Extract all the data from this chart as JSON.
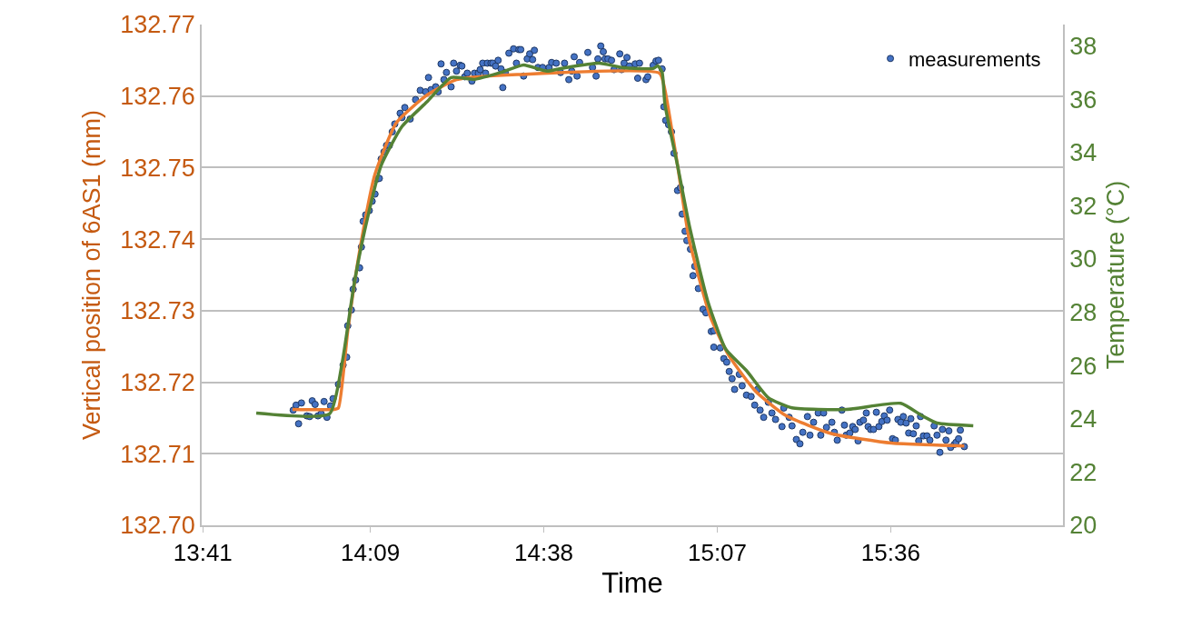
{
  "chart_data": {
    "type": "scatter",
    "xlabel": "Time",
    "ylabel": "Vertical position of 6AS1 (mm)",
    "y2label": "Temperature (°C)",
    "xlim": [
      13.68,
      16.08
    ],
    "xticks": [
      {
        "value": 13.6833,
        "label": "13:41"
      },
      {
        "value": 14.15,
        "label": "14:09"
      },
      {
        "value": 14.6333,
        "label": "14:38"
      },
      {
        "value": 15.1167,
        "label": "15:07"
      },
      {
        "value": 15.6,
        "label": "15:36"
      }
    ],
    "ylim": [
      132.7,
      132.77
    ],
    "yticks": [
      {
        "value": 132.7,
        "label": "132.70"
      },
      {
        "value": 132.71,
        "label": "132.71"
      },
      {
        "value": 132.72,
        "label": "132.72"
      },
      {
        "value": 132.73,
        "label": "132.73"
      },
      {
        "value": 132.74,
        "label": "132.74"
      },
      {
        "value": 132.75,
        "label": "132.75"
      },
      {
        "value": 132.76,
        "label": "132.76"
      },
      {
        "value": 132.77,
        "label": "132.77"
      }
    ],
    "y2lim": [
      20,
      38.8
    ],
    "y2ticks": [
      20,
      22,
      24,
      26,
      28,
      30,
      32,
      34,
      36,
      38
    ],
    "grid": "y",
    "legend": "top right",
    "series": [
      {
        "name": "measurements",
        "marker": "circle",
        "color": "#4472c4",
        "x": [
          13.935,
          13.943,
          13.95,
          13.958,
          13.973,
          13.981,
          13.988,
          13.996,
          14.004,
          14.013,
          14.021,
          14.029,
          14.039,
          14.046,
          14.061,
          14.074,
          14.084,
          14.087,
          14.097,
          14.102,
          14.109,
          14.12,
          14.125,
          14.13,
          14.137,
          14.147,
          14.155,
          14.163,
          14.168,
          14.175,
          14.18,
          14.188,
          14.195,
          14.203,
          14.211,
          14.218,
          14.233,
          14.238,
          14.246,
          14.261,
          14.276,
          14.289,
          14.304,
          14.312,
          14.319,
          14.332,
          14.339,
          14.347,
          14.355,
          14.362,
          14.375,
          14.382,
          14.39,
          14.4,
          14.405,
          14.413,
          14.42,
          14.433,
          14.44,
          14.451,
          14.456,
          14.463,
          14.471,
          14.476,
          14.486,
          14.491,
          14.499,
          14.506,
          14.514,
          14.519,
          14.526,
          14.536,
          14.549,
          14.557,
          14.564,
          14.569,
          14.577,
          14.587,
          14.594,
          14.602,
          14.607,
          14.617,
          14.63,
          14.648,
          14.655,
          14.668,
          14.68,
          14.691,
          14.703,
          14.711,
          14.718,
          14.726,
          14.733,
          14.756,
          14.769,
          14.779,
          14.784,
          14.792,
          14.799,
          14.804,
          14.812,
          14.822,
          14.829,
          14.845,
          14.85,
          14.857,
          14.865,
          14.872,
          14.888,
          14.895,
          14.9,
          14.918,
          14.923,
          14.938,
          14.946,
          14.953,
          14.963,
          14.968,
          14.973,
          14.981,
          14.989,
          14.996,
          15.006,
          15.014,
          15.019,
          15.027,
          15.032,
          15.042,
          15.054,
          15.049,
          15.064,
          15.077,
          15.085,
          15.1,
          15.107,
          15.107,
          15.125,
          15.135,
          15.143,
          15.15,
          15.158,
          15.165,
          15.178,
          15.186,
          15.198,
          15.211,
          15.221,
          15.229,
          15.236,
          15.246,
          15.259,
          15.269,
          15.279,
          15.297,
          15.302,
          15.317,
          15.325,
          15.337,
          15.347,
          15.355,
          15.368,
          15.375,
          15.385,
          15.398,
          15.405,
          15.413,
          15.421,
          15.436,
          15.443,
          15.451,
          15.464,
          15.471,
          15.476,
          15.486,
          15.494,
          15.501,
          15.509,
          15.514,
          15.524,
          15.532,
          15.537,
          15.544,
          15.552,
          15.56,
          15.567,
          15.575,
          15.582,
          15.59,
          15.597,
          15.605,
          15.613,
          15.62,
          15.628,
          15.635,
          15.643,
          15.65,
          15.656,
          15.663,
          15.671,
          15.678,
          15.683,
          15.691,
          15.701,
          15.709,
          15.721,
          15.729,
          15.737,
          15.744,
          15.754,
          15.762,
          15.767,
          15.777,
          15.782,
          15.789,
          15.794,
          15.805
        ],
        "values": [
          132.7161,
          132.7168,
          132.7142,
          132.7171,
          132.7153,
          132.7152,
          132.7174,
          132.7169,
          132.7153,
          132.7156,
          132.7173,
          132.7151,
          132.7167,
          132.7177,
          132.7197,
          132.7224,
          132.7235,
          132.7279,
          132.7301,
          132.733,
          132.7343,
          132.736,
          132.7389,
          132.7425,
          132.7434,
          132.744,
          132.7453,
          132.7463,
          132.7484,
          132.7485,
          132.7512,
          132.7522,
          132.7531,
          132.7531,
          132.755,
          132.7561,
          132.7576,
          132.757,
          132.7584,
          132.7568,
          132.7595,
          132.7608,
          132.7606,
          132.7626,
          132.7609,
          132.7613,
          132.7606,
          132.7645,
          132.7623,
          132.7633,
          132.7613,
          132.7646,
          132.7635,
          132.7643,
          132.7642,
          132.7627,
          132.7632,
          132.7621,
          132.7632,
          132.7632,
          132.7637,
          132.7646,
          132.7632,
          132.7646,
          132.7646,
          132.7646,
          132.7642,
          132.765,
          132.7638,
          132.7612,
          132.7633,
          132.766,
          132.7666,
          132.7646,
          132.7665,
          132.7665,
          132.7628,
          132.7652,
          132.7659,
          132.7651,
          132.7664,
          132.764,
          132.764,
          132.764,
          132.7647,
          132.7646,
          132.7633,
          132.7646,
          132.7623,
          132.7635,
          132.7655,
          132.7628,
          132.7647,
          132.7661,
          132.764,
          132.7628,
          132.7652,
          132.767,
          132.7662,
          132.7652,
          132.7652,
          132.765,
          132.7637,
          132.7659,
          132.7637,
          132.7646,
          132.7654,
          132.7642,
          132.7645,
          132.7625,
          132.7646,
          132.7623,
          132.7627,
          132.7643,
          132.7649,
          132.765,
          132.7638,
          132.7585,
          132.7566,
          132.756,
          132.755,
          132.752,
          132.7468,
          132.7472,
          132.7435,
          132.7411,
          132.7398,
          132.7386,
          132.7362,
          132.7349,
          132.7331,
          132.7302,
          132.7297,
          132.7271,
          132.7272,
          132.7249,
          132.7248,
          132.7233,
          132.7228,
          132.7215,
          132.7205,
          132.719,
          132.7211,
          132.7195,
          132.7182,
          132.718,
          132.7168,
          132.719,
          132.7161,
          132.7151,
          132.7172,
          132.7157,
          132.7148,
          132.7138,
          132.7164,
          132.7151,
          132.7139,
          132.712,
          132.7114,
          132.713,
          132.7152,
          132.7126,
          132.7144,
          132.7157,
          132.7126,
          132.7157,
          132.7137,
          132.7144,
          132.713,
          132.7119,
          132.7161,
          132.714,
          132.7126,
          132.7129,
          132.7138,
          132.7134,
          132.7118,
          132.7144,
          132.7147,
          132.7157,
          132.7138,
          132.7134,
          132.7134,
          132.7158,
          132.7138,
          132.7145,
          132.7153,
          132.7147,
          132.7161,
          132.7121,
          132.7119,
          132.7148,
          132.7144,
          132.7152,
          132.7143,
          132.7129,
          132.7149,
          132.7128,
          132.7139,
          132.7118,
          132.7152,
          132.7125,
          132.7125,
          132.7119,
          132.7139,
          132.7126,
          132.7102,
          132.7134,
          132.7119,
          132.7132,
          132.7109,
          132.7113,
          132.7116,
          132.7121,
          132.7133,
          132.711
        ]
      },
      {
        "type": "line",
        "marker": "none",
        "color": "#ed7d31",
        "x": [
          13.933,
          14.049,
          14.061,
          14.087,
          14.122,
          14.163,
          14.223,
          14.307,
          14.39,
          14.559,
          14.956,
          14.971,
          15.006,
          15.039,
          15.097,
          15.148,
          15.224,
          15.309,
          15.436,
          15.602,
          15.805
        ],
        "values": [
          132.7162,
          132.7162,
          132.7164,
          132.7272,
          132.7389,
          132.7491,
          132.7563,
          132.7601,
          132.7623,
          132.763,
          132.7632,
          132.7608,
          132.7503,
          132.7398,
          132.7292,
          132.7238,
          132.7187,
          132.7153,
          132.7128,
          132.7115,
          132.7111
        ]
      },
      {
        "type": "line",
        "marker": "none",
        "color": "#548235",
        "axis": "y2",
        "x": [
          13.832,
          14.036,
          14.072,
          14.104,
          14.137,
          14.18,
          14.238,
          14.307,
          14.375,
          14.44,
          14.516,
          14.577,
          14.642,
          14.693,
          14.787,
          14.855,
          14.938,
          14.951,
          14.963,
          14.971,
          15.006,
          15.039,
          15.09,
          15.14,
          15.198,
          15.259,
          15.325,
          15.476,
          15.628,
          15.688,
          15.729,
          15.83
        ],
        "values": [
          24.21,
          24.18,
          26.15,
          29.0,
          31.24,
          33.51,
          34.97,
          35.89,
          36.81,
          36.74,
          37.01,
          37.28,
          37.05,
          37.18,
          37.35,
          37.18,
          37.15,
          37.25,
          37.01,
          35.79,
          33.51,
          31.24,
          28.42,
          26.62,
          25.81,
          24.79,
          24.41,
          24.35,
          24.58,
          24.11,
          23.84,
          23.74
        ]
      }
    ]
  }
}
